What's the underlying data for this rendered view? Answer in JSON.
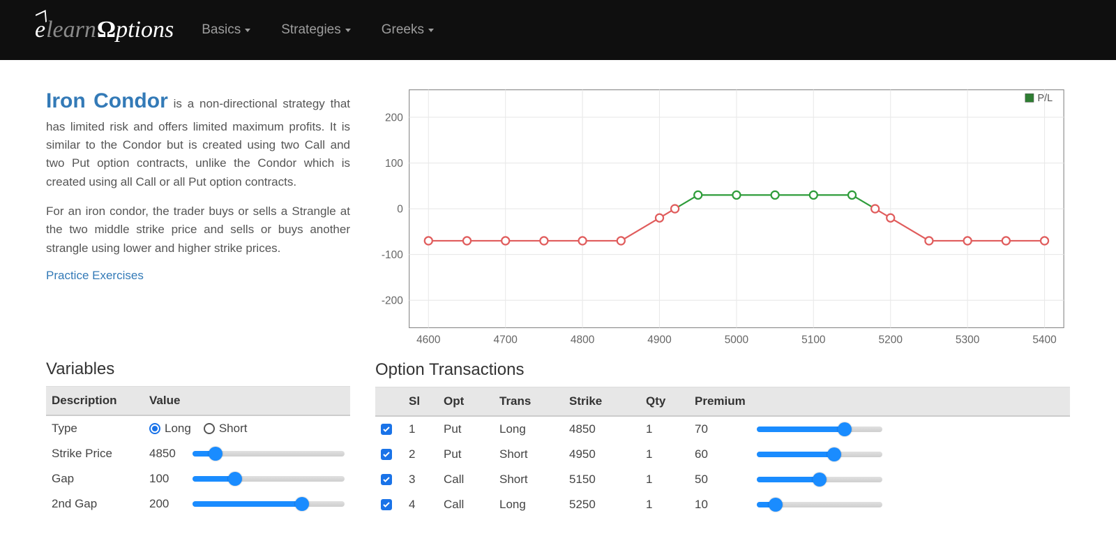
{
  "nav": {
    "items": [
      "Basics",
      "Strategies",
      "Greeks"
    ]
  },
  "page": {
    "title": "Iron Condor",
    "desc1": " is a non-directional strategy that has limited risk and offers limited maximum profits. It is similar to the Condor but is created using two Call and two Put option contracts, unlike the Condor which is created using all Call or all Put option contracts.",
    "desc2": "For an iron condor, the trader buys or sells a Strangle at the two middle strike price and sells or buys another strangle using lower and higher strike prices.",
    "practice_link": "Practice Exercises"
  },
  "chart": {
    "type": "line",
    "xlim": [
      4575,
      5425
    ],
    "ylim": [
      -260,
      260
    ],
    "xticks": [
      4600,
      4700,
      4800,
      4900,
      5000,
      5100,
      5200,
      5300,
      5400
    ],
    "yticks": [
      -200,
      -100,
      0,
      100,
      200
    ],
    "grid_color": "#e9e9e9",
    "border_color": "#888888",
    "axis_label_color": "#666666",
    "legend_label": "P/L",
    "legend_marker_fill": "#2e7d32",
    "line_width": 2,
    "marker_radius": 5,
    "marker_fill": "#ffffff",
    "colors": {
      "loss": "#e05c5c",
      "profit": "#2e9c3a"
    },
    "points": [
      {
        "x": 4600,
        "y": -70,
        "seg": "loss"
      },
      {
        "x": 4650,
        "y": -70,
        "seg": "loss"
      },
      {
        "x": 4700,
        "y": -70,
        "seg": "loss"
      },
      {
        "x": 4750,
        "y": -70,
        "seg": "loss"
      },
      {
        "x": 4800,
        "y": -70,
        "seg": "loss"
      },
      {
        "x": 4850,
        "y": -70,
        "seg": "loss"
      },
      {
        "x": 4900,
        "y": -20,
        "seg": "loss"
      },
      {
        "x": 4920,
        "y": 0,
        "seg": "loss"
      },
      {
        "x": 4950,
        "y": 30,
        "seg": "profit"
      },
      {
        "x": 5000,
        "y": 30,
        "seg": "profit"
      },
      {
        "x": 5050,
        "y": 30,
        "seg": "profit"
      },
      {
        "x": 5100,
        "y": 30,
        "seg": "profit"
      },
      {
        "x": 5150,
        "y": 30,
        "seg": "profit"
      },
      {
        "x": 5180,
        "y": 0,
        "seg": "loss"
      },
      {
        "x": 5200,
        "y": -20,
        "seg": "loss"
      },
      {
        "x": 5250,
        "y": -70,
        "seg": "loss"
      },
      {
        "x": 5300,
        "y": -70,
        "seg": "loss"
      },
      {
        "x": 5350,
        "y": -70,
        "seg": "loss"
      },
      {
        "x": 5400,
        "y": -70,
        "seg": "loss"
      }
    ]
  },
  "variables": {
    "section_title": "Variables",
    "headers": [
      "Description",
      "Value"
    ],
    "rows": [
      {
        "desc": "Type",
        "kind": "radio",
        "options": [
          "Long",
          "Short"
        ],
        "selected": 0
      },
      {
        "desc": "Strike Price",
        "kind": "slider",
        "value": "4850",
        "fill_pct": 15
      },
      {
        "desc": "Gap",
        "kind": "slider",
        "value": "100",
        "fill_pct": 28
      },
      {
        "desc": "2nd Gap",
        "kind": "slider",
        "value": "200",
        "fill_pct": 72
      }
    ]
  },
  "transactions": {
    "section_title": "Option Transactions",
    "headers": [
      "",
      "Sl",
      "Opt",
      "Trans",
      "Strike",
      "Qty",
      "Premium",
      ""
    ],
    "col_widths": [
      "40px",
      "50px",
      "80px",
      "100px",
      "110px",
      "70px",
      "80px",
      "auto"
    ],
    "rows": [
      {
        "chk": true,
        "sl": "1",
        "opt": "Put",
        "trans": "Long",
        "strike": "4850",
        "qty": "1",
        "premium": "70",
        "fill_pct": 70
      },
      {
        "chk": true,
        "sl": "2",
        "opt": "Put",
        "trans": "Short",
        "strike": "4950",
        "qty": "1",
        "premium": "60",
        "fill_pct": 62
      },
      {
        "chk": true,
        "sl": "3",
        "opt": "Call",
        "trans": "Short",
        "strike": "5150",
        "qty": "1",
        "premium": "50",
        "fill_pct": 50
      },
      {
        "chk": true,
        "sl": "4",
        "opt": "Call",
        "trans": "Long",
        "strike": "5250",
        "qty": "1",
        "premium": "10",
        "fill_pct": 15
      }
    ]
  }
}
